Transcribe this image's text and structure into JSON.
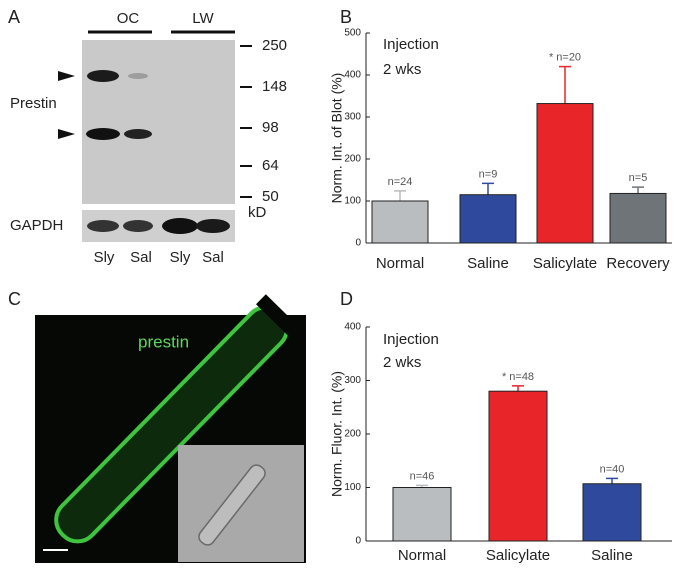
{
  "panel_a": {
    "panel_label": "A",
    "groups": [
      "OC",
      "LW"
    ],
    "markers": [
      "250",
      "148",
      "98",
      "64",
      "50"
    ],
    "marker_unit": "kD",
    "protein": "Prestin",
    "control": "GAPDH",
    "lanes": [
      "Sly",
      "Sal",
      "Sly",
      "Sal"
    ]
  },
  "panel_c": {
    "panel_label": "C",
    "stain": "prestin"
  },
  "chart_data": [
    {
      "type": "bar",
      "panel_label": "B",
      "annotation": [
        "Injection",
        "2 wks"
      ],
      "ylabel": "Norm. Int. of Blot (%)",
      "categories": [
        "Normal",
        "Saline",
        "Salicylate",
        "Recovery"
      ],
      "values": [
        100,
        115,
        332,
        118
      ],
      "errors": [
        24,
        27,
        88,
        15
      ],
      "bar_labels": [
        "n=24",
        "n=9",
        "* n=20",
        "n=5"
      ],
      "colors": [
        "#b9bdc0",
        "#2f4a9c",
        "#e8262a",
        "#6f7479"
      ],
      "ylim": [
        0,
        500
      ],
      "yticks": [
        0,
        100,
        200,
        300,
        400,
        500
      ]
    },
    {
      "type": "bar",
      "panel_label": "D",
      "annotation": [
        "Injection",
        "2 wks"
      ],
      "ylabel": "Norm. Fluor. Int. (%)",
      "categories": [
        "Normal",
        "Salicylate",
        "Saline"
      ],
      "values": [
        100,
        280,
        107
      ],
      "errors": [
        4,
        10,
        10
      ],
      "bar_labels": [
        "n=46",
        "* n=48",
        "n=40"
      ],
      "colors": [
        "#b9bdc0",
        "#e8262a",
        "#2f4a9c"
      ],
      "ylim": [
        0,
        400
      ],
      "yticks": [
        0,
        100,
        200,
        300,
        400
      ]
    }
  ]
}
